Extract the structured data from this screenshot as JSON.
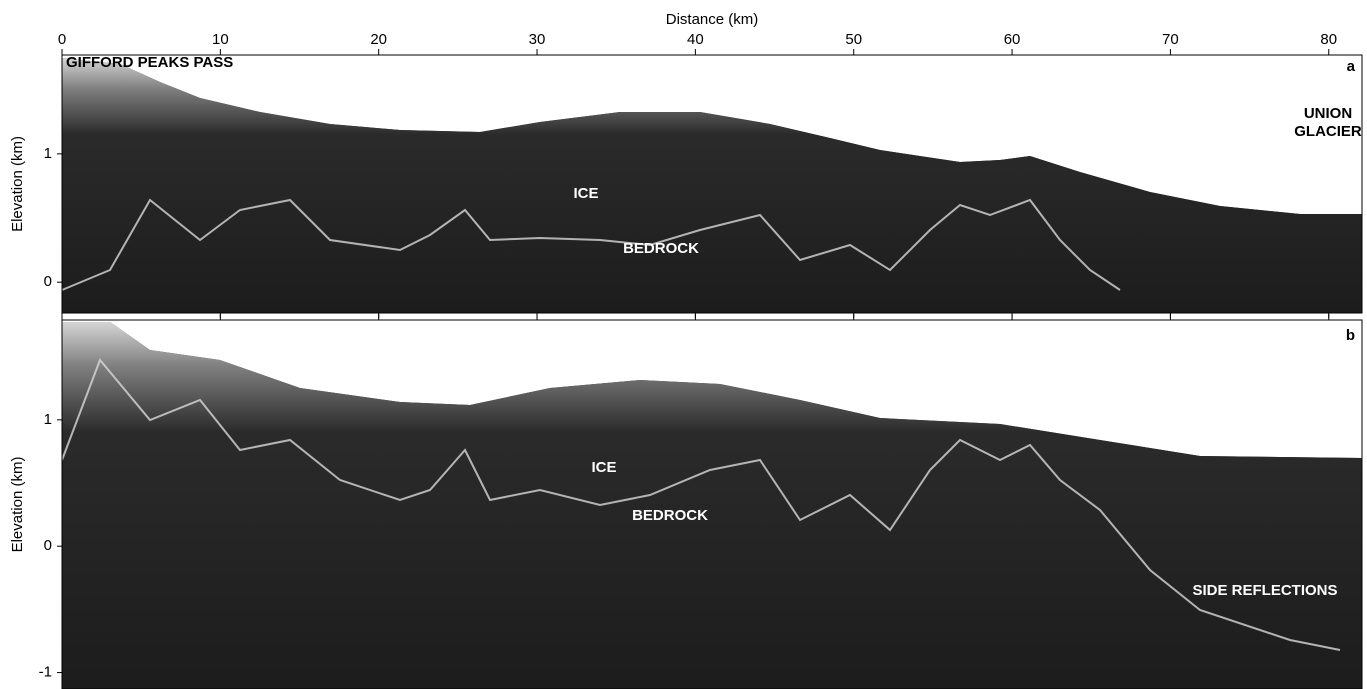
{
  "chart_data": [
    {
      "type": "radargram",
      "xlabel": "Distance (km)",
      "ylabel": "Elevation (km)",
      "xlim": [
        0,
        82.1
      ],
      "xticks": [
        0,
        10,
        20,
        30,
        40,
        50,
        60,
        70,
        80
      ],
      "ylim": [
        -0.24,
        1.77
      ],
      "yticks": [
        0,
        1
      ],
      "annotations": [
        "GIFFORD PEAKS PASS",
        "a",
        "UNION",
        "GLACIER",
        "ICE",
        "BEDROCK"
      ]
    },
    {
      "type": "radargram",
      "ylabel": "Elevation (km)",
      "xlim": [
        0,
        82.1
      ],
      "xticks": [
        0,
        10,
        20,
        30,
        40,
        50,
        60,
        70,
        80
      ],
      "ylim": [
        -1.13,
        1.79
      ],
      "yticks": [
        -1,
        0,
        1
      ],
      "annotations": [
        "b",
        "ICE",
        "BEDROCK",
        "SIDE REFLECTIONS"
      ]
    }
  ]
}
